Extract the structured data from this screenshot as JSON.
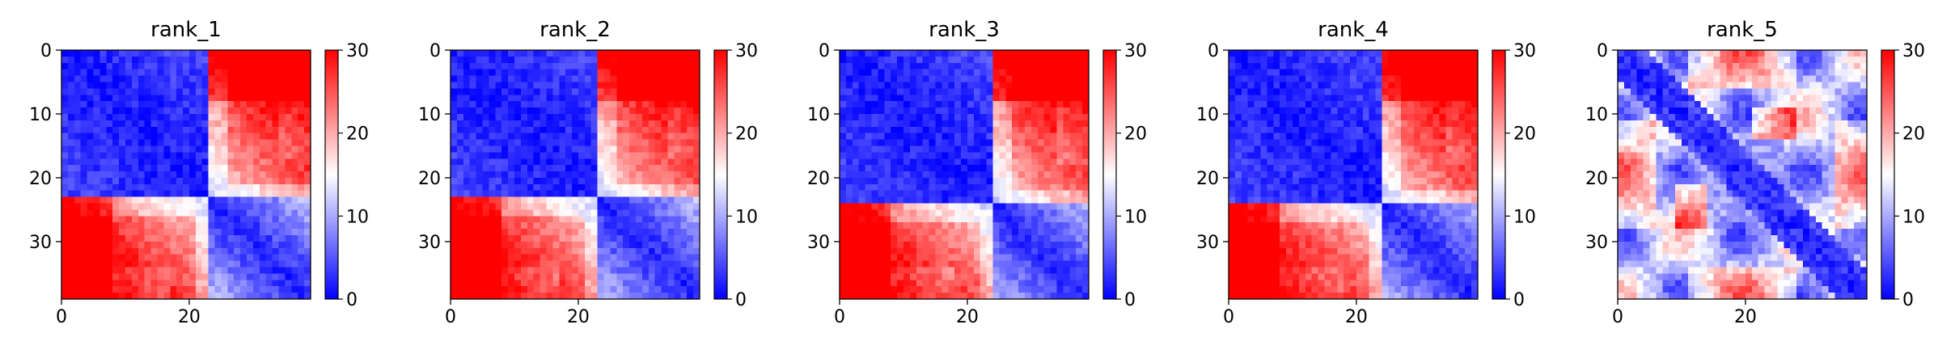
{
  "figure": {
    "background": "#ffffff"
  },
  "colormap": {
    "name": "bwr",
    "low": "#0000ff",
    "mid": "#ffffff",
    "high": "#ff0000",
    "vmin": 0,
    "vmax": 30
  },
  "chart_data": [
    {
      "type": "heatmap",
      "title": "rank_1",
      "size": 39,
      "pattern": "domain",
      "boundary": 23,
      "xticks": [
        0,
        20
      ],
      "yticks": [
        0,
        10,
        20,
        30
      ],
      "colorbar_ticks": [
        0,
        10,
        20,
        30
      ],
      "clim": [
        0,
        30
      ]
    },
    {
      "type": "heatmap",
      "title": "rank_2",
      "size": 39,
      "pattern": "domain",
      "boundary": 23,
      "xticks": [
        0,
        20
      ],
      "yticks": [
        0,
        10,
        20,
        30
      ],
      "colorbar_ticks": [
        0,
        10,
        20,
        30
      ],
      "clim": [
        0,
        30
      ]
    },
    {
      "type": "heatmap",
      "title": "rank_3",
      "size": 39,
      "pattern": "domain",
      "boundary": 24,
      "xticks": [
        0,
        20
      ],
      "yticks": [
        0,
        10,
        20,
        30
      ],
      "colorbar_ticks": [
        0,
        10,
        20,
        30
      ],
      "clim": [
        0,
        30
      ]
    },
    {
      "type": "heatmap",
      "title": "rank_4",
      "size": 39,
      "pattern": "domain",
      "boundary": 24,
      "xticks": [
        0,
        20
      ],
      "yticks": [
        0,
        10,
        20,
        30
      ],
      "colorbar_ticks": [
        0,
        10,
        20,
        30
      ],
      "clim": [
        0,
        30
      ]
    },
    {
      "type": "heatmap",
      "title": "rank_5",
      "size": 39,
      "pattern": "mixed",
      "boundary": 0,
      "xticks": [
        0,
        20
      ],
      "yticks": [
        0,
        10,
        20,
        30
      ],
      "colorbar_ticks": [
        0,
        10,
        20,
        30
      ],
      "clim": [
        0,
        30
      ]
    }
  ]
}
